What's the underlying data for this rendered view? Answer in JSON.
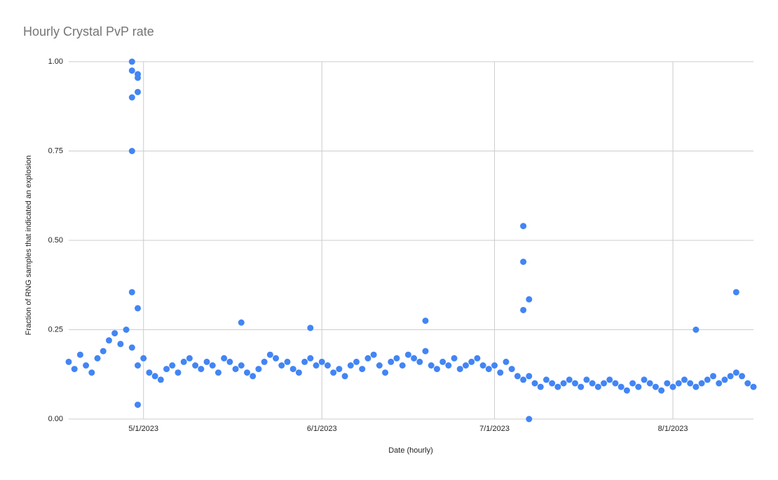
{
  "chart_data": {
    "type": "scatter",
    "title": "Hourly Crystal PvP rate",
    "x_label": "Date (hourly)",
    "y_label": "Fraction of RNG samples that indicated an explosion",
    "color": "#4285f4",
    "grid": true,
    "xlim": [
      "2023-04-18",
      "2023-08-15"
    ],
    "xticks": [
      {
        "value": "2023-05-01",
        "label": "5/1/2023"
      },
      {
        "value": "2023-06-01",
        "label": "6/1/2023"
      },
      {
        "value": "2023-07-01",
        "label": "7/1/2023"
      },
      {
        "value": "2023-08-01",
        "label": "8/1/2023"
      }
    ],
    "ylim": [
      0,
      1
    ],
    "yticks": [
      {
        "value": 0,
        "label": "0.00"
      },
      {
        "value": 0.25,
        "label": "0.25"
      },
      {
        "value": 0.5,
        "label": "0.50"
      },
      {
        "value": 0.75,
        "label": "0.75"
      },
      {
        "value": 1,
        "label": "1.00"
      }
    ],
    "x": [
      "2023-04-18",
      "2023-04-19",
      "2023-04-20",
      "2023-04-21",
      "2023-04-22",
      "2023-04-23",
      "2023-04-24",
      "2023-04-25",
      "2023-04-26",
      "2023-04-27",
      "2023-04-28",
      "2023-04-29",
      "2023-04-30",
      "2023-05-01",
      "2023-05-02",
      "2023-05-03",
      "2023-05-04",
      "2023-05-05",
      "2023-05-06",
      "2023-05-07",
      "2023-05-08",
      "2023-05-09",
      "2023-05-10",
      "2023-05-11",
      "2023-05-12",
      "2023-05-13",
      "2023-05-14",
      "2023-05-15",
      "2023-05-16",
      "2023-05-17",
      "2023-05-18",
      "2023-05-19",
      "2023-05-20",
      "2023-05-21",
      "2023-05-22",
      "2023-05-23",
      "2023-05-24",
      "2023-05-25",
      "2023-05-26",
      "2023-05-27",
      "2023-05-28",
      "2023-05-29",
      "2023-05-30",
      "2023-05-31",
      "2023-06-01",
      "2023-06-02",
      "2023-06-03",
      "2023-06-04",
      "2023-06-05",
      "2023-06-06",
      "2023-06-07",
      "2023-06-08",
      "2023-06-09",
      "2023-06-10",
      "2023-06-11",
      "2023-06-12",
      "2023-06-13",
      "2023-06-14",
      "2023-06-15",
      "2023-06-16",
      "2023-06-17",
      "2023-06-18",
      "2023-06-19",
      "2023-06-20",
      "2023-06-21",
      "2023-06-22",
      "2023-06-23",
      "2023-06-24",
      "2023-06-25",
      "2023-06-26",
      "2023-06-27",
      "2023-06-28",
      "2023-06-29",
      "2023-06-30",
      "2023-07-01",
      "2023-07-02",
      "2023-07-03",
      "2023-07-04",
      "2023-07-05",
      "2023-07-06",
      "2023-07-07",
      "2023-07-08",
      "2023-07-09",
      "2023-07-10",
      "2023-07-11",
      "2023-07-12",
      "2023-07-13",
      "2023-07-14",
      "2023-07-15",
      "2023-07-16",
      "2023-07-17",
      "2023-07-18",
      "2023-07-19",
      "2023-07-20",
      "2023-07-21",
      "2023-07-22",
      "2023-07-23",
      "2023-07-24",
      "2023-07-25",
      "2023-07-26",
      "2023-07-27",
      "2023-07-28",
      "2023-07-29",
      "2023-07-30",
      "2023-07-31",
      "2023-08-01",
      "2023-08-02",
      "2023-08-03",
      "2023-08-04",
      "2023-08-05",
      "2023-08-06",
      "2023-08-07",
      "2023-08-08",
      "2023-08-09",
      "2023-08-10",
      "2023-08-11",
      "2023-08-12",
      "2023-08-13",
      "2023-08-14",
      "2023-08-15",
      "2023-04-29",
      "2023-04-29",
      "2023-04-30",
      "2023-04-30",
      "2023-04-30",
      "2023-04-29",
      "2023-04-29",
      "2023-04-29",
      "2023-04-30",
      "2023-04-30",
      "2023-07-06",
      "2023-07-06",
      "2023-07-06",
      "2023-07-07",
      "2023-07-07",
      "2023-08-12",
      "2023-08-05",
      "2023-05-18",
      "2023-06-19",
      "2023-05-30"
    ],
    "values": [
      0.16,
      0.14,
      0.18,
      0.15,
      0.13,
      0.17,
      0.19,
      0.22,
      0.24,
      0.21,
      0.25,
      0.2,
      0.15,
      0.17,
      0.13,
      0.12,
      0.11,
      0.14,
      0.15,
      0.13,
      0.16,
      0.17,
      0.15,
      0.14,
      0.16,
      0.15,
      0.13,
      0.17,
      0.16,
      0.14,
      0.15,
      0.13,
      0.12,
      0.14,
      0.16,
      0.18,
      0.17,
      0.15,
      0.16,
      0.14,
      0.13,
      0.16,
      0.17,
      0.15,
      0.16,
      0.15,
      0.13,
      0.14,
      0.12,
      0.15,
      0.16,
      0.14,
      0.17,
      0.18,
      0.15,
      0.13,
      0.16,
      0.17,
      0.15,
      0.18,
      0.17,
      0.16,
      0.19,
      0.15,
      0.14,
      0.16,
      0.15,
      0.17,
      0.14,
      0.15,
      0.16,
      0.17,
      0.15,
      0.14,
      0.15,
      0.13,
      0.16,
      0.14,
      0.12,
      0.11,
      0.12,
      0.1,
      0.09,
      0.11,
      0.1,
      0.09,
      0.1,
      0.11,
      0.1,
      0.09,
      0.11,
      0.1,
      0.09,
      0.1,
      0.11,
      0.1,
      0.09,
      0.08,
      0.1,
      0.09,
      0.11,
      0.1,
      0.09,
      0.08,
      0.1,
      0.09,
      0.1,
      0.11,
      0.1,
      0.09,
      0.1,
      0.11,
      0.12,
      0.1,
      0.11,
      0.12,
      0.13,
      0.12,
      0.1,
      0.09,
      1.0,
      0.975,
      0.965,
      0.955,
      0.915,
      0.9,
      0.75,
      0.355,
      0.31,
      0.04,
      0.54,
      0.44,
      0.305,
      0.335,
      0.0,
      0.355,
      0.25,
      0.27,
      0.275,
      0.255
    ]
  }
}
